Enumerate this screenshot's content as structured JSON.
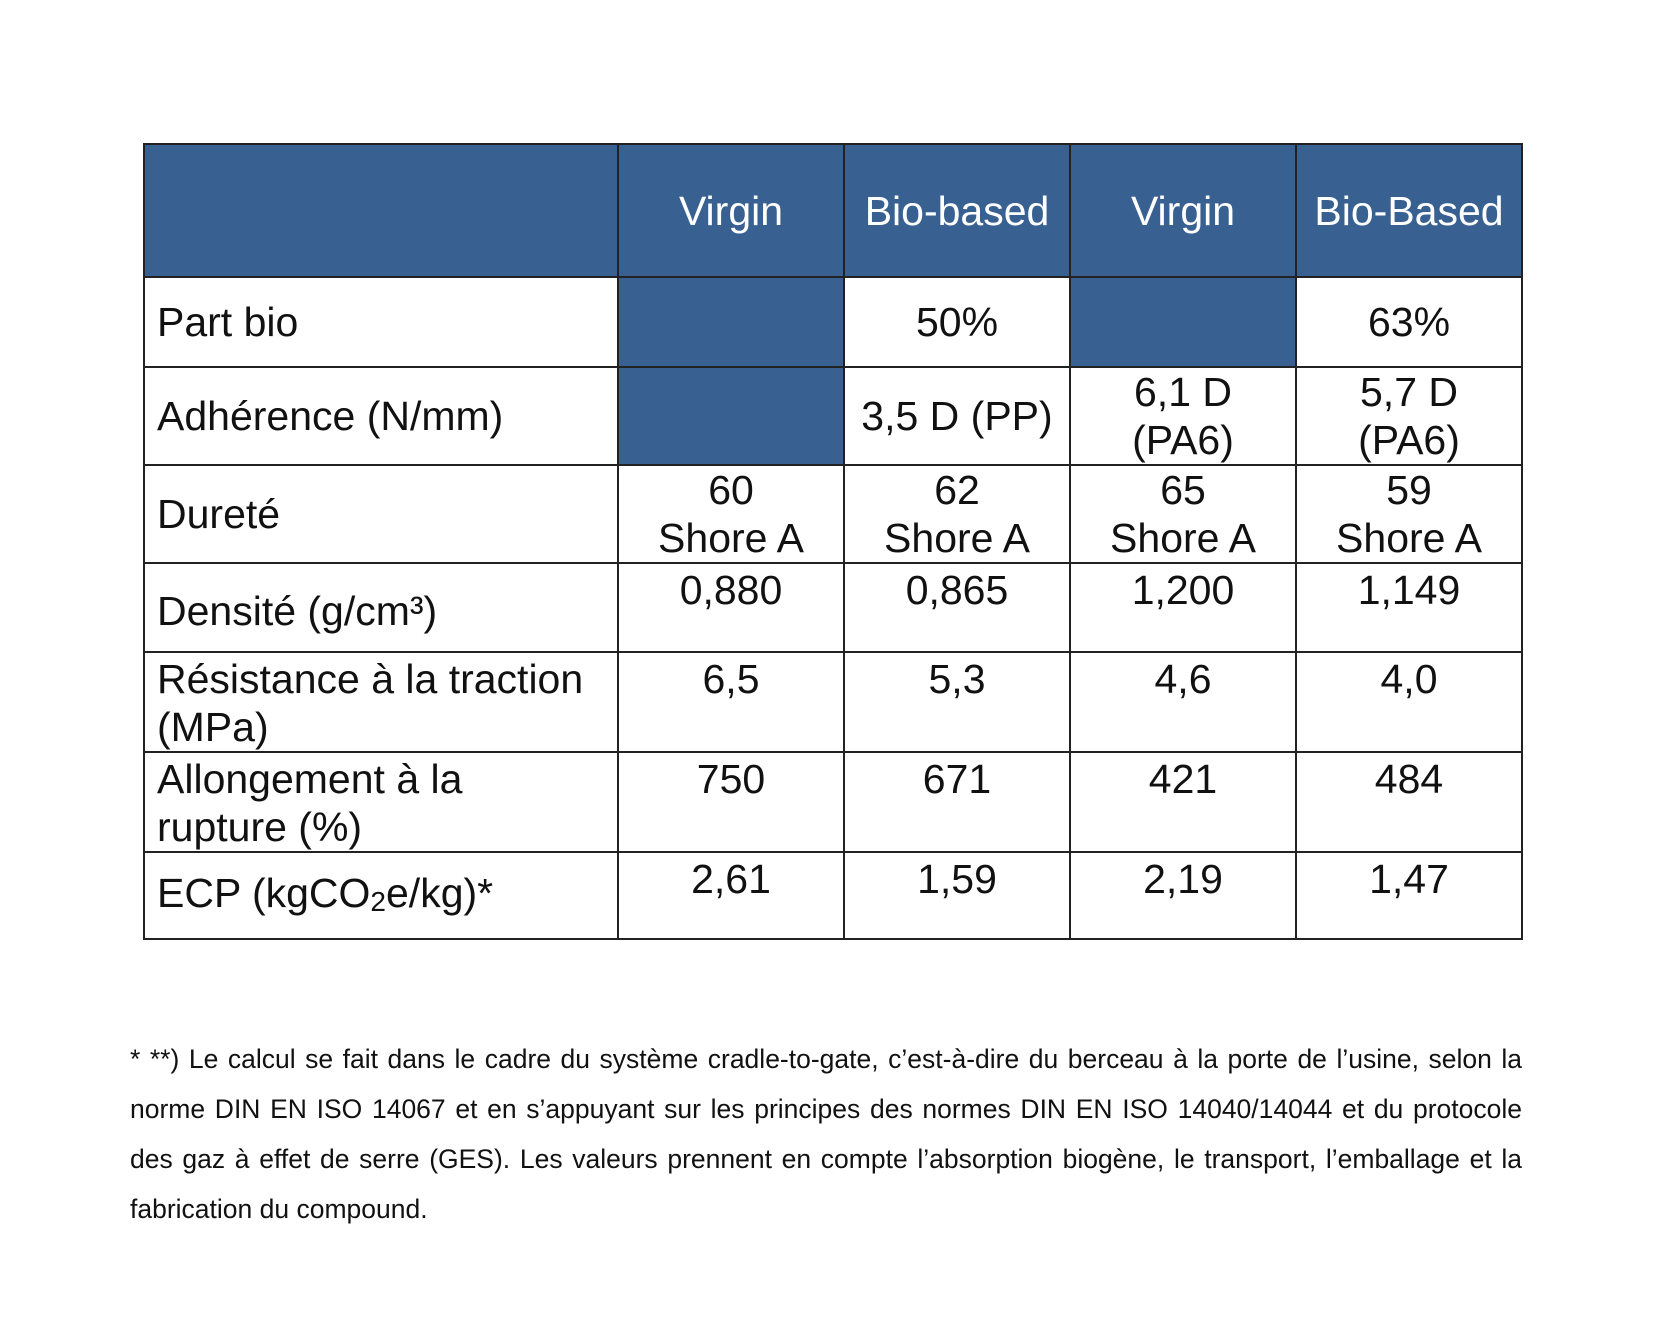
{
  "table": {
    "headers": [
      "",
      "Virgin",
      "Bio-based",
      "Virgin",
      "Bio-Based"
    ],
    "rows": [
      {
        "label": "Part bio",
        "cells": [
          "",
          "50%",
          "",
          "63%"
        ]
      },
      {
        "label": "Adhérence (N/mm)",
        "cells": [
          "",
          "3,5 D (PP)",
          [
            "6,1 D",
            "(PA6)"
          ],
          [
            "5,7 D",
            "(PA6)"
          ]
        ]
      },
      {
        "label": "Dureté",
        "cells": [
          [
            "60",
            "Shore A"
          ],
          [
            "62",
            "Shore A"
          ],
          [
            "65",
            "Shore A"
          ],
          [
            "59",
            "Shore A"
          ]
        ]
      },
      {
        "label": "Densité (g/cm³)",
        "cells": [
          "0,880",
          "0,865",
          "1,200",
          "1,149"
        ]
      },
      {
        "label_lines": [
          "Résistance à la traction",
          "(MPa)"
        ],
        "cells": [
          "6,5",
          "5,3",
          "4,6",
          "4,0"
        ]
      },
      {
        "label_lines": [
          "Allongement à la",
          "rupture (%)"
        ],
        "cells": [
          "750",
          "671",
          "421",
          "484"
        ]
      },
      {
        "label_parts": [
          "ECP (kgCO",
          "2",
          "e/kg)*"
        ],
        "cells": [
          "2,61",
          "1,59",
          "2,19",
          "1,47"
        ]
      }
    ],
    "header_color": "#386090"
  },
  "footnote": "* **) Le calcul se fait dans le cadre du système cradle-to-gate, c’est-à-dire du berceau à la porte de l’usine, selon la norme DIN EN ISO 14067 et en s’appuyant sur les principes des normes DIN EN ISO 14040/14044 et du protocole des gaz à effet de serre (GES). Les valeurs prennent en compte l’absorption biogène, le transport, l’emballage et la fabrication du compound."
}
